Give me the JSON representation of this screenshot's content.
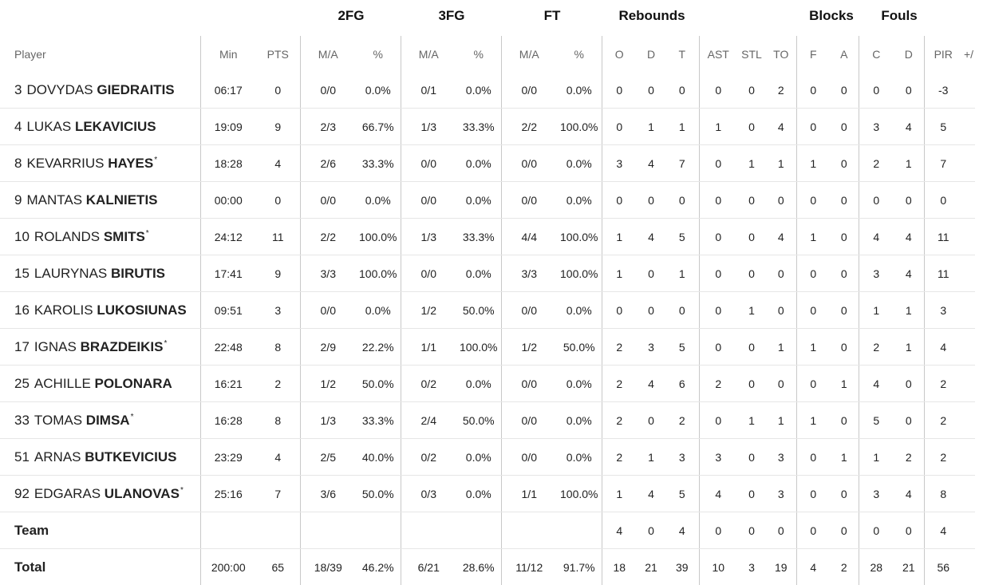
{
  "groups": {
    "fg2": "2FG",
    "fg3": "3FG",
    "ft": "FT",
    "reb": "Rebounds",
    "blk": "Blocks",
    "fouls": "Fouls"
  },
  "columns": {
    "player": "Player",
    "min": "Min",
    "pts": "PTS",
    "fg2_ma": "M/A",
    "fg2_pct": "%",
    "fg3_ma": "M/A",
    "fg3_pct": "%",
    "ft_ma": "M/A",
    "ft_pct": "%",
    "reb_o": "O",
    "reb_d": "D",
    "reb_t": "T",
    "ast": "AST",
    "stl": "STL",
    "to": "TO",
    "blk_f": "F",
    "blk_a": "A",
    "fouls_c": "C",
    "fouls_d": "D",
    "pir": "PIR",
    "pm": "+/"
  },
  "players": [
    {
      "number": "3",
      "first": "DOVYDAS",
      "last": "GIEDRAITIS",
      "starter": false,
      "min": "06:17",
      "pts": "0",
      "fg2_ma": "0/0",
      "fg2_pct": "0.0%",
      "fg3_ma": "0/1",
      "fg3_pct": "0.0%",
      "ft_ma": "0/0",
      "ft_pct": "0.0%",
      "reb_o": "0",
      "reb_d": "0",
      "reb_t": "0",
      "ast": "0",
      "stl": "0",
      "to": "2",
      "blk_f": "0",
      "blk_a": "0",
      "fouls_c": "0",
      "fouls_d": "0",
      "pir": "-3"
    },
    {
      "number": "4",
      "first": "LUKAS",
      "last": "LEKAVICIUS",
      "starter": false,
      "min": "19:09",
      "pts": "9",
      "fg2_ma": "2/3",
      "fg2_pct": "66.7%",
      "fg3_ma": "1/3",
      "fg3_pct": "33.3%",
      "ft_ma": "2/2",
      "ft_pct": "100.0%",
      "reb_o": "0",
      "reb_d": "1",
      "reb_t": "1",
      "ast": "1",
      "stl": "0",
      "to": "4",
      "blk_f": "0",
      "blk_a": "0",
      "fouls_c": "3",
      "fouls_d": "4",
      "pir": "5"
    },
    {
      "number": "8",
      "first": "KEVARRIUS",
      "last": "HAYES",
      "starter": true,
      "min": "18:28",
      "pts": "4",
      "fg2_ma": "2/6",
      "fg2_pct": "33.3%",
      "fg3_ma": "0/0",
      "fg3_pct": "0.0%",
      "ft_ma": "0/0",
      "ft_pct": "0.0%",
      "reb_o": "3",
      "reb_d": "4",
      "reb_t": "7",
      "ast": "0",
      "stl": "1",
      "to": "1",
      "blk_f": "1",
      "blk_a": "0",
      "fouls_c": "2",
      "fouls_d": "1",
      "pir": "7"
    },
    {
      "number": "9",
      "first": "MANTAS",
      "last": "KALNIETIS",
      "starter": false,
      "min": "00:00",
      "pts": "0",
      "fg2_ma": "0/0",
      "fg2_pct": "0.0%",
      "fg3_ma": "0/0",
      "fg3_pct": "0.0%",
      "ft_ma": "0/0",
      "ft_pct": "0.0%",
      "reb_o": "0",
      "reb_d": "0",
      "reb_t": "0",
      "ast": "0",
      "stl": "0",
      "to": "0",
      "blk_f": "0",
      "blk_a": "0",
      "fouls_c": "0",
      "fouls_d": "0",
      "pir": "0"
    },
    {
      "number": "10",
      "first": "ROLANDS",
      "last": "SMITS",
      "starter": true,
      "min": "24:12",
      "pts": "11",
      "fg2_ma": "2/2",
      "fg2_pct": "100.0%",
      "fg3_ma": "1/3",
      "fg3_pct": "33.3%",
      "ft_ma": "4/4",
      "ft_pct": "100.0%",
      "reb_o": "1",
      "reb_d": "4",
      "reb_t": "5",
      "ast": "0",
      "stl": "0",
      "to": "4",
      "blk_f": "1",
      "blk_a": "0",
      "fouls_c": "4",
      "fouls_d": "4",
      "pir": "11"
    },
    {
      "number": "15",
      "first": "LAURYNAS",
      "last": "BIRUTIS",
      "starter": false,
      "min": "17:41",
      "pts": "9",
      "fg2_ma": "3/3",
      "fg2_pct": "100.0%",
      "fg3_ma": "0/0",
      "fg3_pct": "0.0%",
      "ft_ma": "3/3",
      "ft_pct": "100.0%",
      "reb_o": "1",
      "reb_d": "0",
      "reb_t": "1",
      "ast": "0",
      "stl": "0",
      "to": "0",
      "blk_f": "0",
      "blk_a": "0",
      "fouls_c": "3",
      "fouls_d": "4",
      "pir": "11"
    },
    {
      "number": "16",
      "first": "KAROLIS",
      "last": "LUKOSIUNAS",
      "starter": false,
      "min": "09:51",
      "pts": "3",
      "fg2_ma": "0/0",
      "fg2_pct": "0.0%",
      "fg3_ma": "1/2",
      "fg3_pct": "50.0%",
      "ft_ma": "0/0",
      "ft_pct": "0.0%",
      "reb_o": "0",
      "reb_d": "0",
      "reb_t": "0",
      "ast": "0",
      "stl": "1",
      "to": "0",
      "blk_f": "0",
      "blk_a": "0",
      "fouls_c": "1",
      "fouls_d": "1",
      "pir": "3"
    },
    {
      "number": "17",
      "first": "IGNAS",
      "last": "BRAZDEIKIS",
      "starter": true,
      "min": "22:48",
      "pts": "8",
      "fg2_ma": "2/9",
      "fg2_pct": "22.2%",
      "fg3_ma": "1/1",
      "fg3_pct": "100.0%",
      "ft_ma": "1/2",
      "ft_pct": "50.0%",
      "reb_o": "2",
      "reb_d": "3",
      "reb_t": "5",
      "ast": "0",
      "stl": "0",
      "to": "1",
      "blk_f": "1",
      "blk_a": "0",
      "fouls_c": "2",
      "fouls_d": "1",
      "pir": "4"
    },
    {
      "number": "25",
      "first": "ACHILLE",
      "last": "POLONARA",
      "starter": false,
      "min": "16:21",
      "pts": "2",
      "fg2_ma": "1/2",
      "fg2_pct": "50.0%",
      "fg3_ma": "0/2",
      "fg3_pct": "0.0%",
      "ft_ma": "0/0",
      "ft_pct": "0.0%",
      "reb_o": "2",
      "reb_d": "4",
      "reb_t": "6",
      "ast": "2",
      "stl": "0",
      "to": "0",
      "blk_f": "0",
      "blk_a": "1",
      "fouls_c": "4",
      "fouls_d": "0",
      "pir": "2"
    },
    {
      "number": "33",
      "first": "TOMAS",
      "last": "DIMSA",
      "starter": true,
      "min": "16:28",
      "pts": "8",
      "fg2_ma": "1/3",
      "fg2_pct": "33.3%",
      "fg3_ma": "2/4",
      "fg3_pct": "50.0%",
      "ft_ma": "0/0",
      "ft_pct": "0.0%",
      "reb_o": "2",
      "reb_d": "0",
      "reb_t": "2",
      "ast": "0",
      "stl": "1",
      "to": "1",
      "blk_f": "1",
      "blk_a": "0",
      "fouls_c": "5",
      "fouls_d": "0",
      "pir": "2"
    },
    {
      "number": "51",
      "first": "ARNAS",
      "last": "BUTKEVICIUS",
      "starter": false,
      "min": "23:29",
      "pts": "4",
      "fg2_ma": "2/5",
      "fg2_pct": "40.0%",
      "fg3_ma": "0/2",
      "fg3_pct": "0.0%",
      "ft_ma": "0/0",
      "ft_pct": "0.0%",
      "reb_o": "2",
      "reb_d": "1",
      "reb_t": "3",
      "ast": "3",
      "stl": "0",
      "to": "3",
      "blk_f": "0",
      "blk_a": "1",
      "fouls_c": "1",
      "fouls_d": "2",
      "pir": "2"
    },
    {
      "number": "92",
      "first": "EDGARAS",
      "last": "ULANOVAS",
      "starter": true,
      "min": "25:16",
      "pts": "7",
      "fg2_ma": "3/6",
      "fg2_pct": "50.0%",
      "fg3_ma": "0/3",
      "fg3_pct": "0.0%",
      "ft_ma": "1/1",
      "ft_pct": "100.0%",
      "reb_o": "1",
      "reb_d": "4",
      "reb_t": "5",
      "ast": "4",
      "stl": "0",
      "to": "3",
      "blk_f": "0",
      "blk_a": "0",
      "fouls_c": "3",
      "fouls_d": "4",
      "pir": "8"
    }
  ],
  "team": {
    "label": "Team",
    "reb_o": "4",
    "reb_d": "0",
    "reb_t": "4",
    "ast": "0",
    "stl": "0",
    "to": "0",
    "blk_f": "0",
    "blk_a": "0",
    "fouls_c": "0",
    "fouls_d": "0",
    "pir": "4"
  },
  "total": {
    "label": "Total",
    "min": "200:00",
    "pts": "65",
    "fg2_ma": "18/39",
    "fg2_pct": "46.2%",
    "fg3_ma": "6/21",
    "fg3_pct": "28.6%",
    "ft_ma": "11/12",
    "ft_pct": "91.7%",
    "reb_o": "18",
    "reb_d": "21",
    "reb_t": "39",
    "ast": "10",
    "stl": "3",
    "to": "19",
    "blk_f": "4",
    "blk_a": "2",
    "fouls_c": "28",
    "fouls_d": "21",
    "pir": "56"
  },
  "starter_mark": "*"
}
